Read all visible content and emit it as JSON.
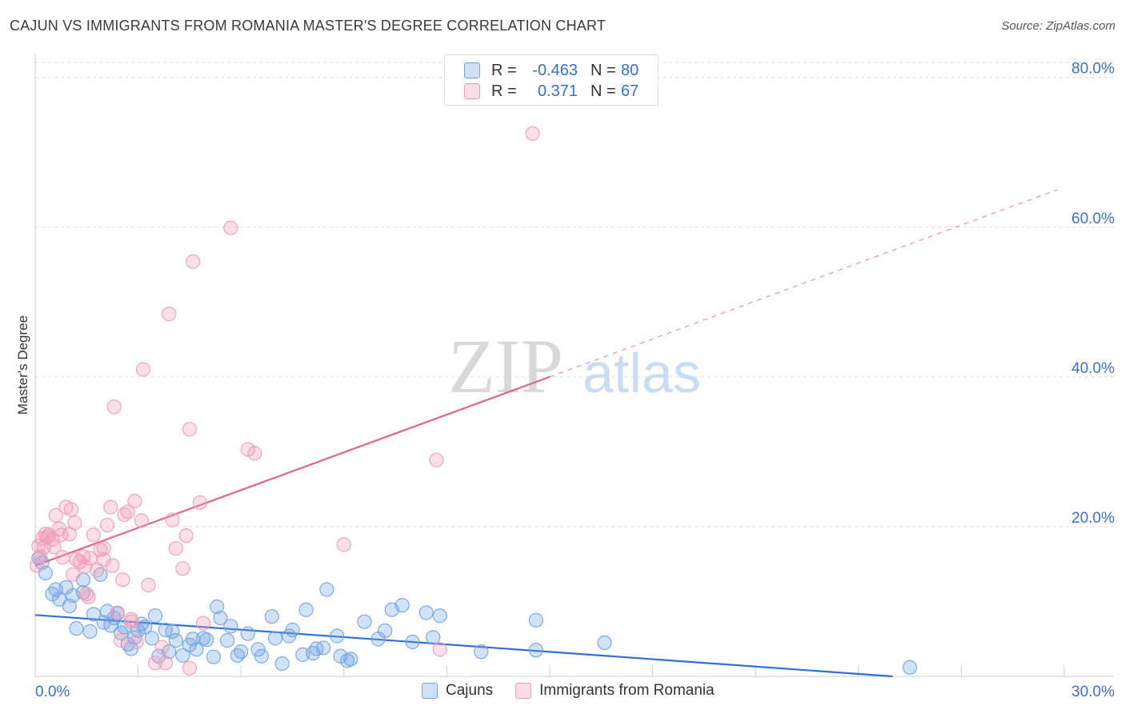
{
  "header": {
    "title": "CAJUN VS IMMIGRANTS FROM ROMANIA MASTER'S DEGREE CORRELATION CHART",
    "source": "Source: ZipAtlas.com"
  },
  "watermark": {
    "zip": "ZIP",
    "atlas": "atlas"
  },
  "legend": {
    "rows": [
      {
        "r_label": "R =",
        "r_value": "-0.463",
        "n_label": "N =",
        "n_value": "80",
        "color": "#6fa3e3"
      },
      {
        "r_label": "R =",
        "r_value": " 0.371",
        "n_label": "N =",
        "n_value": "67",
        "color": "#f29ab5"
      }
    ]
  },
  "bottom_legend": [
    {
      "label": "Cajuns",
      "color": "#6fa3e3"
    },
    {
      "label": "Immigrants from Romania",
      "color": "#f29ab5"
    }
  ],
  "chart_data": {
    "type": "scatter",
    "title": "CAJUN VS IMMIGRANTS FROM ROMANIA MASTER'S DEGREE CORRELATION CHART",
    "xlabel": "",
    "ylabel": "Master's Degree",
    "xlim": [
      0,
      30
    ],
    "ylim": [
      0,
      82
    ],
    "x_tick_labels": [
      "0.0%",
      "30.0%"
    ],
    "y_ticks": [
      20,
      40,
      60,
      80
    ],
    "y_tick_labels": [
      "20.0%",
      "40.0%",
      "60.0%",
      "80.0%"
    ],
    "grid": true,
    "series": [
      {
        "name": "Cajuns",
        "color": "#6fa3e3",
        "line_color": "#2f6fd6",
        "trend": {
          "x": [
            0,
            25
          ],
          "y": [
            8.2,
            0.0
          ],
          "dashed_from": null
        },
        "points": [
          [
            0.1,
            15.8
          ],
          [
            0.2,
            15.2
          ],
          [
            0.3,
            13.8
          ],
          [
            0.5,
            11.0
          ],
          [
            0.6,
            11.6
          ],
          [
            0.7,
            10.3
          ],
          [
            0.9,
            11.9
          ],
          [
            1.0,
            9.4
          ],
          [
            1.1,
            10.8
          ],
          [
            1.2,
            6.4
          ],
          [
            1.4,
            11.2
          ],
          [
            1.4,
            12.9
          ],
          [
            1.6,
            6.0
          ],
          [
            1.7,
            8.3
          ],
          [
            1.9,
            13.6
          ],
          [
            2.0,
            7.2
          ],
          [
            2.1,
            8.7
          ],
          [
            2.2,
            6.8
          ],
          [
            2.3,
            7.8
          ],
          [
            2.4,
            8.4
          ],
          [
            2.5,
            5.8
          ],
          [
            2.6,
            6.6
          ],
          [
            2.7,
            4.3
          ],
          [
            2.8,
            3.7
          ],
          [
            2.9,
            5.2
          ],
          [
            3.0,
            6.1
          ],
          [
            3.1,
            7.0
          ],
          [
            3.2,
            6.6
          ],
          [
            3.4,
            5.1
          ],
          [
            3.5,
            8.1
          ],
          [
            3.6,
            2.7
          ],
          [
            3.8,
            6.2
          ],
          [
            3.9,
            3.3
          ],
          [
            4.0,
            6.0
          ],
          [
            4.1,
            4.8
          ],
          [
            4.3,
            2.8
          ],
          [
            4.5,
            4.2
          ],
          [
            4.6,
            5.0
          ],
          [
            4.7,
            3.6
          ],
          [
            4.9,
            5.1
          ],
          [
            5.0,
            4.9
          ],
          [
            5.2,
            2.6
          ],
          [
            5.3,
            9.3
          ],
          [
            5.4,
            7.8
          ],
          [
            5.6,
            4.8
          ],
          [
            5.7,
            6.7
          ],
          [
            5.9,
            2.8
          ],
          [
            6.0,
            3.3
          ],
          [
            6.2,
            5.7
          ],
          [
            6.5,
            3.6
          ],
          [
            6.6,
            2.7
          ],
          [
            6.9,
            8.0
          ],
          [
            7.0,
            5.1
          ],
          [
            7.2,
            1.7
          ],
          [
            7.4,
            5.4
          ],
          [
            7.5,
            6.2
          ],
          [
            7.8,
            2.9
          ],
          [
            7.9,
            8.9
          ],
          [
            8.1,
            3.1
          ],
          [
            8.2,
            3.7
          ],
          [
            8.4,
            3.8
          ],
          [
            8.5,
            11.6
          ],
          [
            8.8,
            5.4
          ],
          [
            8.9,
            2.7
          ],
          [
            9.1,
            2.1
          ],
          [
            9.2,
            2.3
          ],
          [
            9.6,
            7.3
          ],
          [
            10.0,
            5.0
          ],
          [
            10.2,
            6.1
          ],
          [
            10.4,
            8.9
          ],
          [
            10.7,
            9.5
          ],
          [
            11.0,
            4.6
          ],
          [
            11.4,
            8.5
          ],
          [
            11.6,
            5.2
          ],
          [
            11.8,
            8.1
          ],
          [
            13.0,
            3.3
          ],
          [
            14.6,
            7.5
          ],
          [
            14.6,
            3.5
          ],
          [
            16.6,
            4.5
          ],
          [
            25.5,
            1.2
          ]
        ]
      },
      {
        "name": "Immigrants from Romania",
        "color": "#f29ab5",
        "line_color": "#e0648f",
        "trend": {
          "x": [
            0,
            15
          ],
          "y": [
            14.8,
            40.0
          ],
          "dashed_to": [
            29.8,
            65.0
          ]
        },
        "points": [
          [
            0.05,
            14.8
          ],
          [
            0.1,
            17.4
          ],
          [
            0.15,
            16.0
          ],
          [
            0.2,
            18.4
          ],
          [
            0.25,
            17.2
          ],
          [
            0.3,
            19.0
          ],
          [
            0.35,
            18.6
          ],
          [
            0.4,
            18.9
          ],
          [
            0.5,
            18.3
          ],
          [
            0.55,
            17.3
          ],
          [
            0.6,
            21.5
          ],
          [
            0.7,
            19.7
          ],
          [
            0.75,
            18.9
          ],
          [
            0.8,
            15.9
          ],
          [
            0.9,
            22.6
          ],
          [
            1.0,
            19.0
          ],
          [
            1.05,
            22.3
          ],
          [
            1.1,
            13.6
          ],
          [
            1.15,
            20.5
          ],
          [
            1.2,
            15.6
          ],
          [
            1.3,
            15.3
          ],
          [
            1.4,
            16.0
          ],
          [
            1.45,
            14.7
          ],
          [
            1.5,
            11.0
          ],
          [
            1.55,
            10.6
          ],
          [
            1.6,
            15.8
          ],
          [
            1.7,
            18.9
          ],
          [
            1.8,
            14.2
          ],
          [
            1.9,
            16.9
          ],
          [
            2.0,
            15.6
          ],
          [
            2.0,
            17.1
          ],
          [
            2.1,
            20.2
          ],
          [
            2.2,
            22.6
          ],
          [
            2.25,
            14.8
          ],
          [
            2.3,
            36.0
          ],
          [
            2.4,
            8.5
          ],
          [
            2.5,
            4.8
          ],
          [
            2.55,
            12.9
          ],
          [
            2.6,
            21.6
          ],
          [
            2.7,
            22.0
          ],
          [
            2.8,
            7.6
          ],
          [
            2.9,
            23.4
          ],
          [
            2.95,
            4.6
          ],
          [
            3.1,
            20.8
          ],
          [
            3.15,
            41.0
          ],
          [
            3.3,
            12.2
          ],
          [
            3.5,
            1.8
          ],
          [
            3.7,
            3.9
          ],
          [
            3.8,
            1.8
          ],
          [
            3.9,
            48.4
          ],
          [
            4.0,
            20.9
          ],
          [
            4.1,
            17.1
          ],
          [
            4.3,
            14.4
          ],
          [
            4.4,
            18.8
          ],
          [
            4.5,
            1.1
          ],
          [
            4.5,
            33.0
          ],
          [
            4.6,
            55.4
          ],
          [
            4.8,
            23.2
          ],
          [
            4.9,
            7.1
          ],
          [
            5.7,
            59.9
          ],
          [
            6.2,
            30.3
          ],
          [
            6.4,
            29.8
          ],
          [
            9.0,
            17.6
          ],
          [
            11.7,
            28.9
          ],
          [
            11.8,
            3.6
          ],
          [
            14.5,
            72.5
          ],
          [
            2.8,
            7.3
          ]
        ]
      }
    ]
  }
}
